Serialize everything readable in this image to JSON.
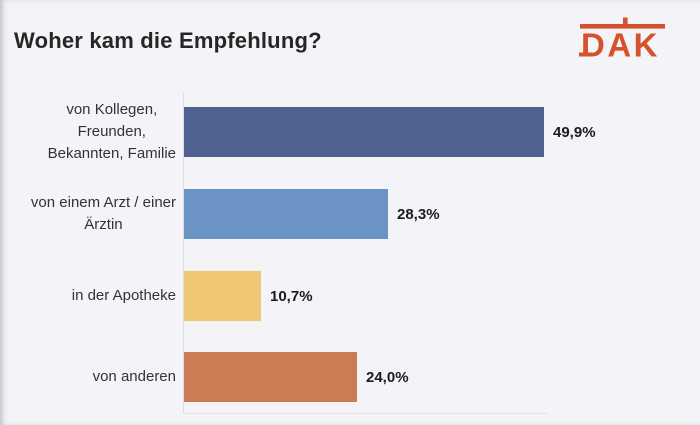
{
  "slide": {
    "background": "#f4f3f7",
    "title": "Woher kam die Empfehlung?",
    "logo": {
      "name": "dak-logo",
      "text": "DAK",
      "color": "#d4532c"
    }
  },
  "chart_data": {
    "type": "bar",
    "orientation": "horizontal",
    "title": "Woher kam die Empfehlung?",
    "categories": [
      "von Kollegen, Freunden, Bekannten, Familie",
      "von einem Arzt / einer Ärztin",
      "in der Apotheke",
      "von anderen"
    ],
    "category_lines": [
      [
        "von Kollegen,",
        "Freunden,",
        "Bekannten, Familie"
      ],
      [
        "von einem Arzt / einer",
        "Ärztin"
      ],
      [
        "in der Apotheke"
      ],
      [
        "von anderen"
      ]
    ],
    "values": [
      49.9,
      28.3,
      10.7,
      24.0
    ],
    "value_labels": [
      "49,9%",
      "28,3%",
      "10,7%",
      "24,0%"
    ],
    "bar_colors": [
      "#50628f",
      "#6b94c4",
      "#eec674",
      "#cc7c52"
    ],
    "unit": "%",
    "xlim": [
      0,
      52
    ],
    "grid": false,
    "legend": false,
    "value_label_position": "right-of-bar"
  }
}
